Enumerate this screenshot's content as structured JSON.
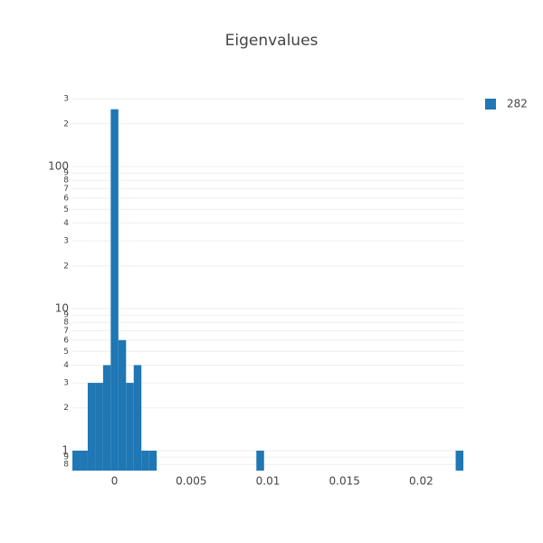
{
  "chart_data": {
    "type": "histogram",
    "title": "Eigenvalues",
    "bins": [
      -0.00275,
      -0.00225,
      -0.00175,
      -0.00125,
      -0.00075,
      -0.00025,
      0.00025,
      0.00075,
      0.00125,
      0.00175,
      0.00225,
      0.00275,
      0.00325,
      0.00375,
      0.00425,
      0.00475,
      0.00525,
      0.00575,
      0.00625,
      0.00675,
      0.00725,
      0.00775,
      0.00825,
      0.00875,
      0.00925,
      0.00975,
      0.01025,
      0.01075,
      0.01125,
      0.01175,
      0.01225,
      0.01275,
      0.01325,
      0.01375,
      0.01425,
      0.01475,
      0.01525,
      0.01575,
      0.01625,
      0.01675,
      0.01725,
      0.01775,
      0.01825,
      0.01875,
      0.01925,
      0.01975,
      0.02025,
      0.02075,
      0.02125,
      0.02175,
      0.02225,
      0.02275
    ],
    "series": [
      {
        "name": "282",
        "color": "#1f77b4",
        "values": [
          1,
          1,
          3,
          3,
          4,
          253,
          6,
          3,
          4,
          1,
          1,
          0,
          0,
          0,
          0,
          0,
          0,
          0,
          0,
          0,
          0,
          0,
          0,
          0,
          1,
          0,
          0,
          0,
          0,
          0,
          0,
          0,
          0,
          0,
          0,
          0,
          0,
          0,
          0,
          0,
          0,
          0,
          0,
          0,
          0,
          0,
          0,
          0,
          0,
          0,
          1
        ]
      }
    ],
    "xlim": [
      -0.00275,
      0.02275
    ],
    "xticks": [
      0,
      0.005,
      0.01,
      0.015,
      0.02
    ],
    "ylim": [
      0.724,
      343
    ],
    "log_y": true,
    "grid": true,
    "yticks": [
      {
        "value": 0.8,
        "label": "8"
      },
      {
        "value": 0.9,
        "label": "9"
      },
      1,
      {
        "value": 2,
        "label": "2"
      },
      {
        "value": 3,
        "label": "3"
      },
      {
        "value": 4,
        "label": "4"
      },
      {
        "value": 5,
        "label": "5"
      },
      {
        "value": 6,
        "label": "6"
      },
      {
        "value": 7,
        "label": "7"
      },
      {
        "value": 8,
        "label": "8"
      },
      {
        "value": 9,
        "label": "9"
      },
      10,
      {
        "value": 20,
        "label": "2"
      },
      {
        "value": 30,
        "label": "3"
      },
      {
        "value": 40,
        "label": "4"
      },
      {
        "value": 50,
        "label": "5"
      },
      {
        "value": 60,
        "label": "6"
      },
      {
        "value": 70,
        "label": "7"
      },
      {
        "value": 80,
        "label": "8"
      },
      {
        "value": 90,
        "label": "9"
      },
      100,
      {
        "value": 200,
        "label": "2"
      },
      {
        "value": 300,
        "label": "3"
      }
    ],
    "legend": "top-right"
  }
}
